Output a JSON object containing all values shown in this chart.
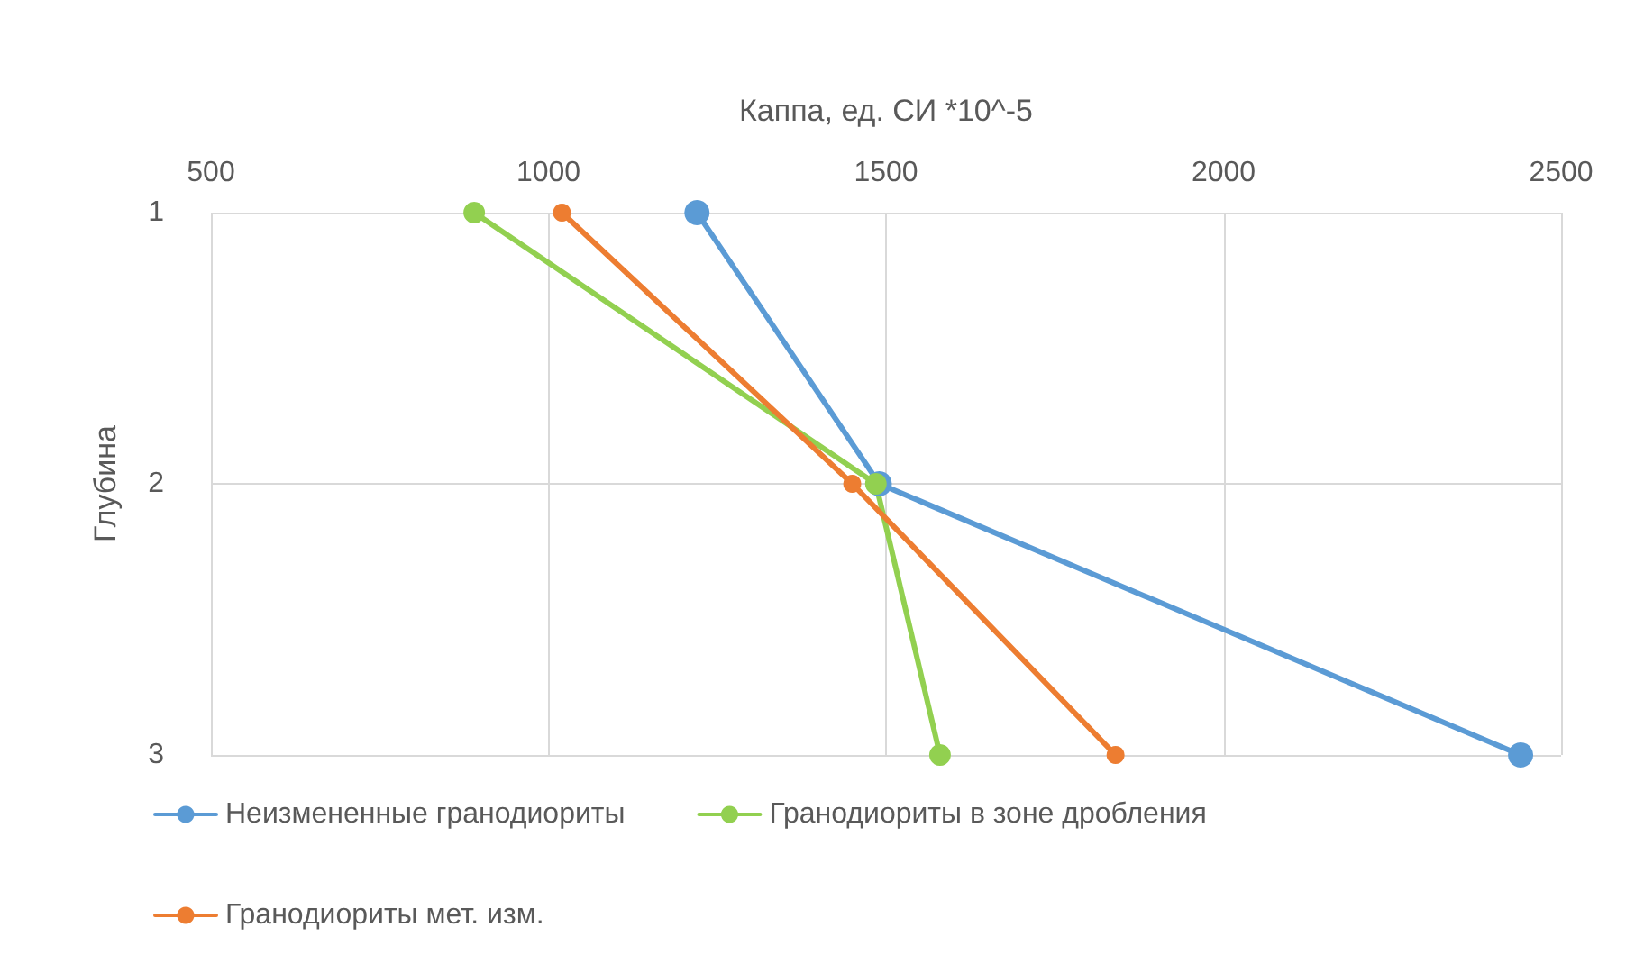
{
  "chart_data": {
    "type": "line",
    "xlabel": "Каппа, ед. СИ *10^-5",
    "ylabel": "Глубина",
    "xlim": [
      500,
      2500
    ],
    "xticks": [
      500,
      1000,
      1500,
      2000,
      2500
    ],
    "ylim": [
      3,
      1
    ],
    "yticks": [
      1,
      2,
      3
    ],
    "grid": true,
    "legend": "bottom",
    "marker": "circle",
    "line_style": "solid",
    "series": [
      {
        "name": "Неизмененные гранодиориты",
        "color": "#5b9bd5",
        "x": [
          1220,
          1490,
          2440
        ],
        "values": [
          1,
          2,
          3
        ]
      },
      {
        "name": "Гранодиориты в зоне дробления",
        "color": "#92d050",
        "x": [
          890,
          1485,
          1580
        ],
        "values": [
          1,
          2,
          3
        ]
      },
      {
        "name": "Гранодиориты мет. изм.",
        "color": "#ed7d31",
        "x": [
          1020,
          1450,
          1840
        ],
        "values": [
          1,
          2,
          3
        ]
      }
    ]
  }
}
